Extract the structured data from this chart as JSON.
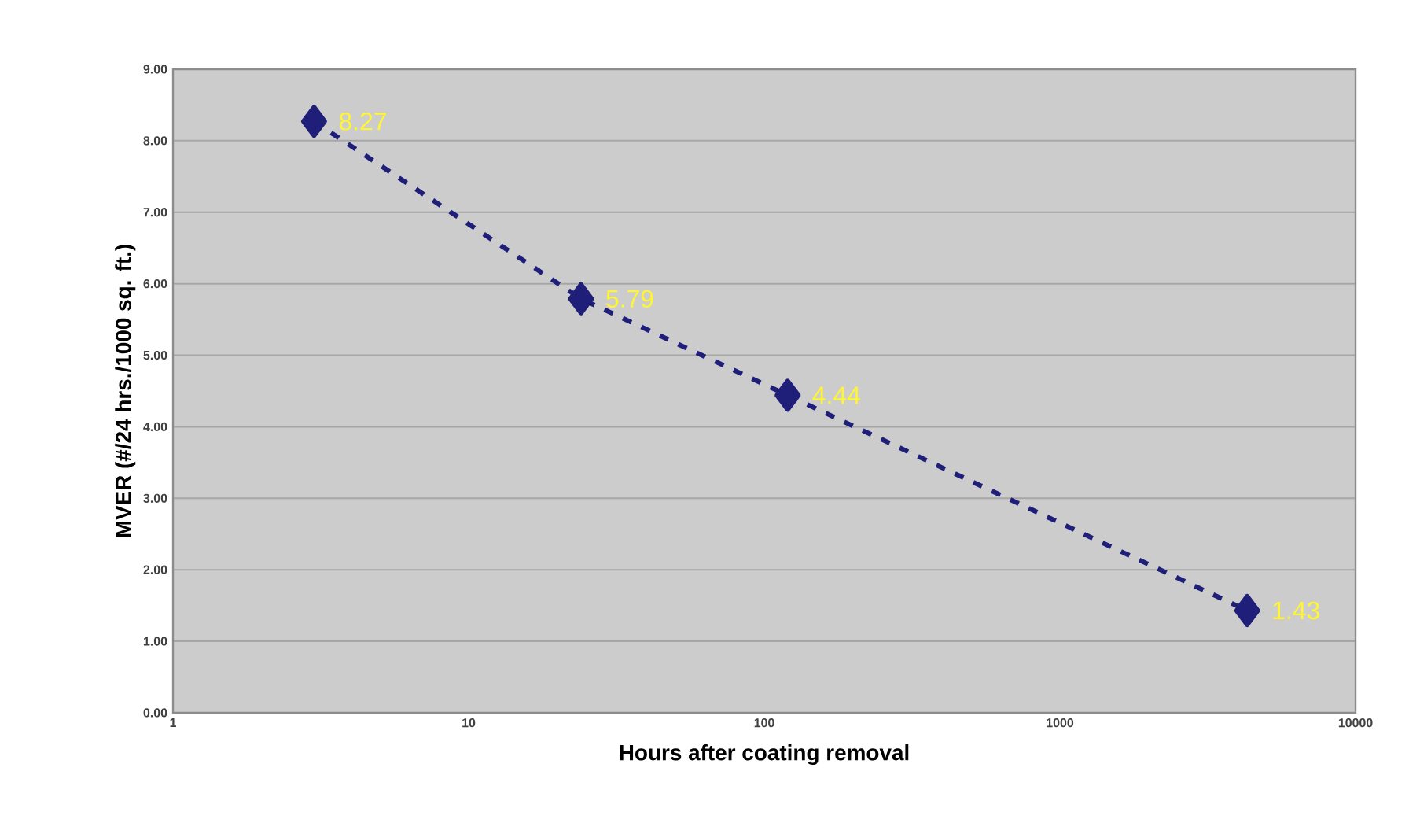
{
  "chart_data": {
    "type": "line",
    "xlabel": "Hours after coating removal",
    "ylabel": "MVER (#/24 hrs./1000 sq. ft.)",
    "log": "x",
    "x": [
      3,
      24,
      120,
      4300
    ],
    "series": [
      {
        "color": "#1f1f7a",
        "values": [
          8.27,
          5.79,
          4.44,
          1.43
        ]
      }
    ],
    "xlim": [
      1,
      10000
    ],
    "xticks": [
      1,
      10,
      100,
      1000,
      10000
    ],
    "ylim": [
      0,
      9
    ],
    "yticks": [
      {
        "value": 0,
        "label": "0.00"
      },
      {
        "value": 1,
        "label": "1.00"
      },
      {
        "value": 2,
        "label": "2.00"
      },
      {
        "value": 3,
        "label": "3.00"
      },
      {
        "value": 4,
        "label": "4.00"
      },
      {
        "value": 5,
        "label": "5.00"
      },
      {
        "value": 6,
        "label": "6.00"
      },
      {
        "value": 7,
        "label": "7.00"
      },
      {
        "value": 8,
        "label": "8.00"
      },
      {
        "value": 9,
        "label": "9.00"
      }
    ],
    "grid": "y",
    "marker": "diamond",
    "line_style": "dashed",
    "data_labels": true
  }
}
